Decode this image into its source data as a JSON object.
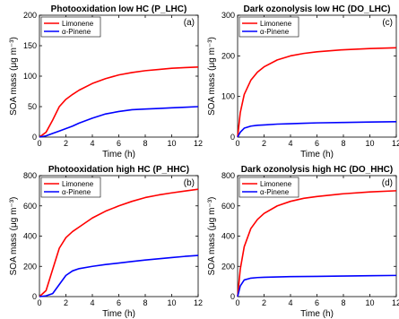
{
  "chart_data": [
    {
      "type": "line",
      "id": "p_lhc",
      "title": "Photooxidation low HC (P_LHC)",
      "panel_label": "(a)",
      "xlabel": "Time (h)",
      "ylabel": "SOA mass (μg m⁻³)",
      "xlim": [
        0,
        12
      ],
      "ylim": [
        0,
        200
      ],
      "xticks": [
        0,
        2,
        4,
        6,
        8,
        10,
        12
      ],
      "yticks": [
        0,
        50,
        100,
        150,
        200
      ],
      "x": [
        0,
        0.5,
        1,
        1.5,
        2,
        2.5,
        3,
        4,
        5,
        6,
        7,
        8,
        9,
        10,
        11,
        12
      ],
      "series": [
        {
          "name": "Limonene",
          "color": "#ff0000",
          "values": [
            0,
            8,
            28,
            50,
            62,
            70,
            77,
            88,
            96,
            102,
            106,
            109,
            111,
            113,
            114,
            115
          ]
        },
        {
          "name": "α-Pinene",
          "color": "#0000ff",
          "values": [
            0,
            2,
            6,
            10,
            14,
            18,
            23,
            31,
            38,
            42,
            45,
            46,
            47,
            48,
            49,
            50
          ]
        }
      ]
    },
    {
      "type": "line",
      "id": "do_lhc",
      "title": "Dark ozonolysis low HC (DO_LHC)",
      "panel_label": "(c)",
      "xlabel": "Time (h)",
      "ylabel": "SOA mass (μg m⁻³)",
      "xlim": [
        0,
        12
      ],
      "ylim": [
        0,
        300
      ],
      "xticks": [
        0,
        2,
        4,
        6,
        8,
        10,
        12
      ],
      "yticks": [
        0,
        100,
        200,
        300
      ],
      "x": [
        0,
        0.2,
        0.5,
        1,
        1.5,
        2,
        3,
        4,
        5,
        6,
        8,
        10,
        12
      ],
      "series": [
        {
          "name": "Limonene",
          "color": "#ff0000",
          "values": [
            0,
            60,
            105,
            140,
            160,
            173,
            190,
            200,
            206,
            210,
            215,
            218,
            220
          ]
        },
        {
          "name": "α-Pinene",
          "color": "#0000ff",
          "values": [
            0,
            12,
            22,
            27,
            29,
            30,
            32,
            33,
            34,
            35,
            36,
            37,
            38
          ]
        }
      ]
    },
    {
      "type": "line",
      "id": "p_hhc",
      "title": "Photooxidation high HC (P_HHC)",
      "panel_label": "(b)",
      "xlabel": "Time (h)",
      "ylabel": "SOA mass (μg m⁻³)",
      "xlim": [
        0,
        12
      ],
      "ylim": [
        0,
        800
      ],
      "xticks": [
        0,
        2,
        4,
        6,
        8,
        10,
        12
      ],
      "yticks": [
        0,
        200,
        400,
        600,
        800
      ],
      "x": [
        0,
        0.5,
        1,
        1.5,
        2,
        2.5,
        3,
        4,
        5,
        6,
        7,
        8,
        9,
        10,
        11,
        12
      ],
      "series": [
        {
          "name": "Limonene",
          "color": "#ff0000",
          "values": [
            0,
            40,
            180,
            320,
            390,
            430,
            460,
            520,
            565,
            600,
            630,
            655,
            672,
            686,
            698,
            710
          ]
        },
        {
          "name": "α-Pinene",
          "color": "#0000ff",
          "values": [
            0,
            5,
            20,
            80,
            140,
            170,
            185,
            200,
            212,
            222,
            232,
            242,
            250,
            258,
            266,
            272
          ]
        }
      ]
    },
    {
      "type": "line",
      "id": "do_hhc",
      "title": "Dark ozonolysis high HC (DO_HHC)",
      "panel_label": "(d)",
      "xlabel": "Time (h)",
      "ylabel": "SOA mass (μg m⁻³)",
      "xlim": [
        0,
        12
      ],
      "ylim": [
        0,
        800
      ],
      "xticks": [
        0,
        2,
        4,
        6,
        8,
        10,
        12
      ],
      "yticks": [
        0,
        200,
        400,
        600,
        800
      ],
      "x": [
        0,
        0.2,
        0.5,
        1,
        1.5,
        2,
        3,
        4,
        5,
        6,
        8,
        10,
        12
      ],
      "series": [
        {
          "name": "Limonene",
          "color": "#ff0000",
          "values": [
            0,
            180,
            330,
            450,
            510,
            550,
            600,
            630,
            650,
            662,
            680,
            692,
            700
          ]
        },
        {
          "name": "α-Pinene",
          "color": "#0000ff",
          "values": [
            0,
            70,
            110,
            122,
            126,
            128,
            130,
            132,
            133,
            134,
            136,
            138,
            140
          ]
        }
      ]
    }
  ]
}
